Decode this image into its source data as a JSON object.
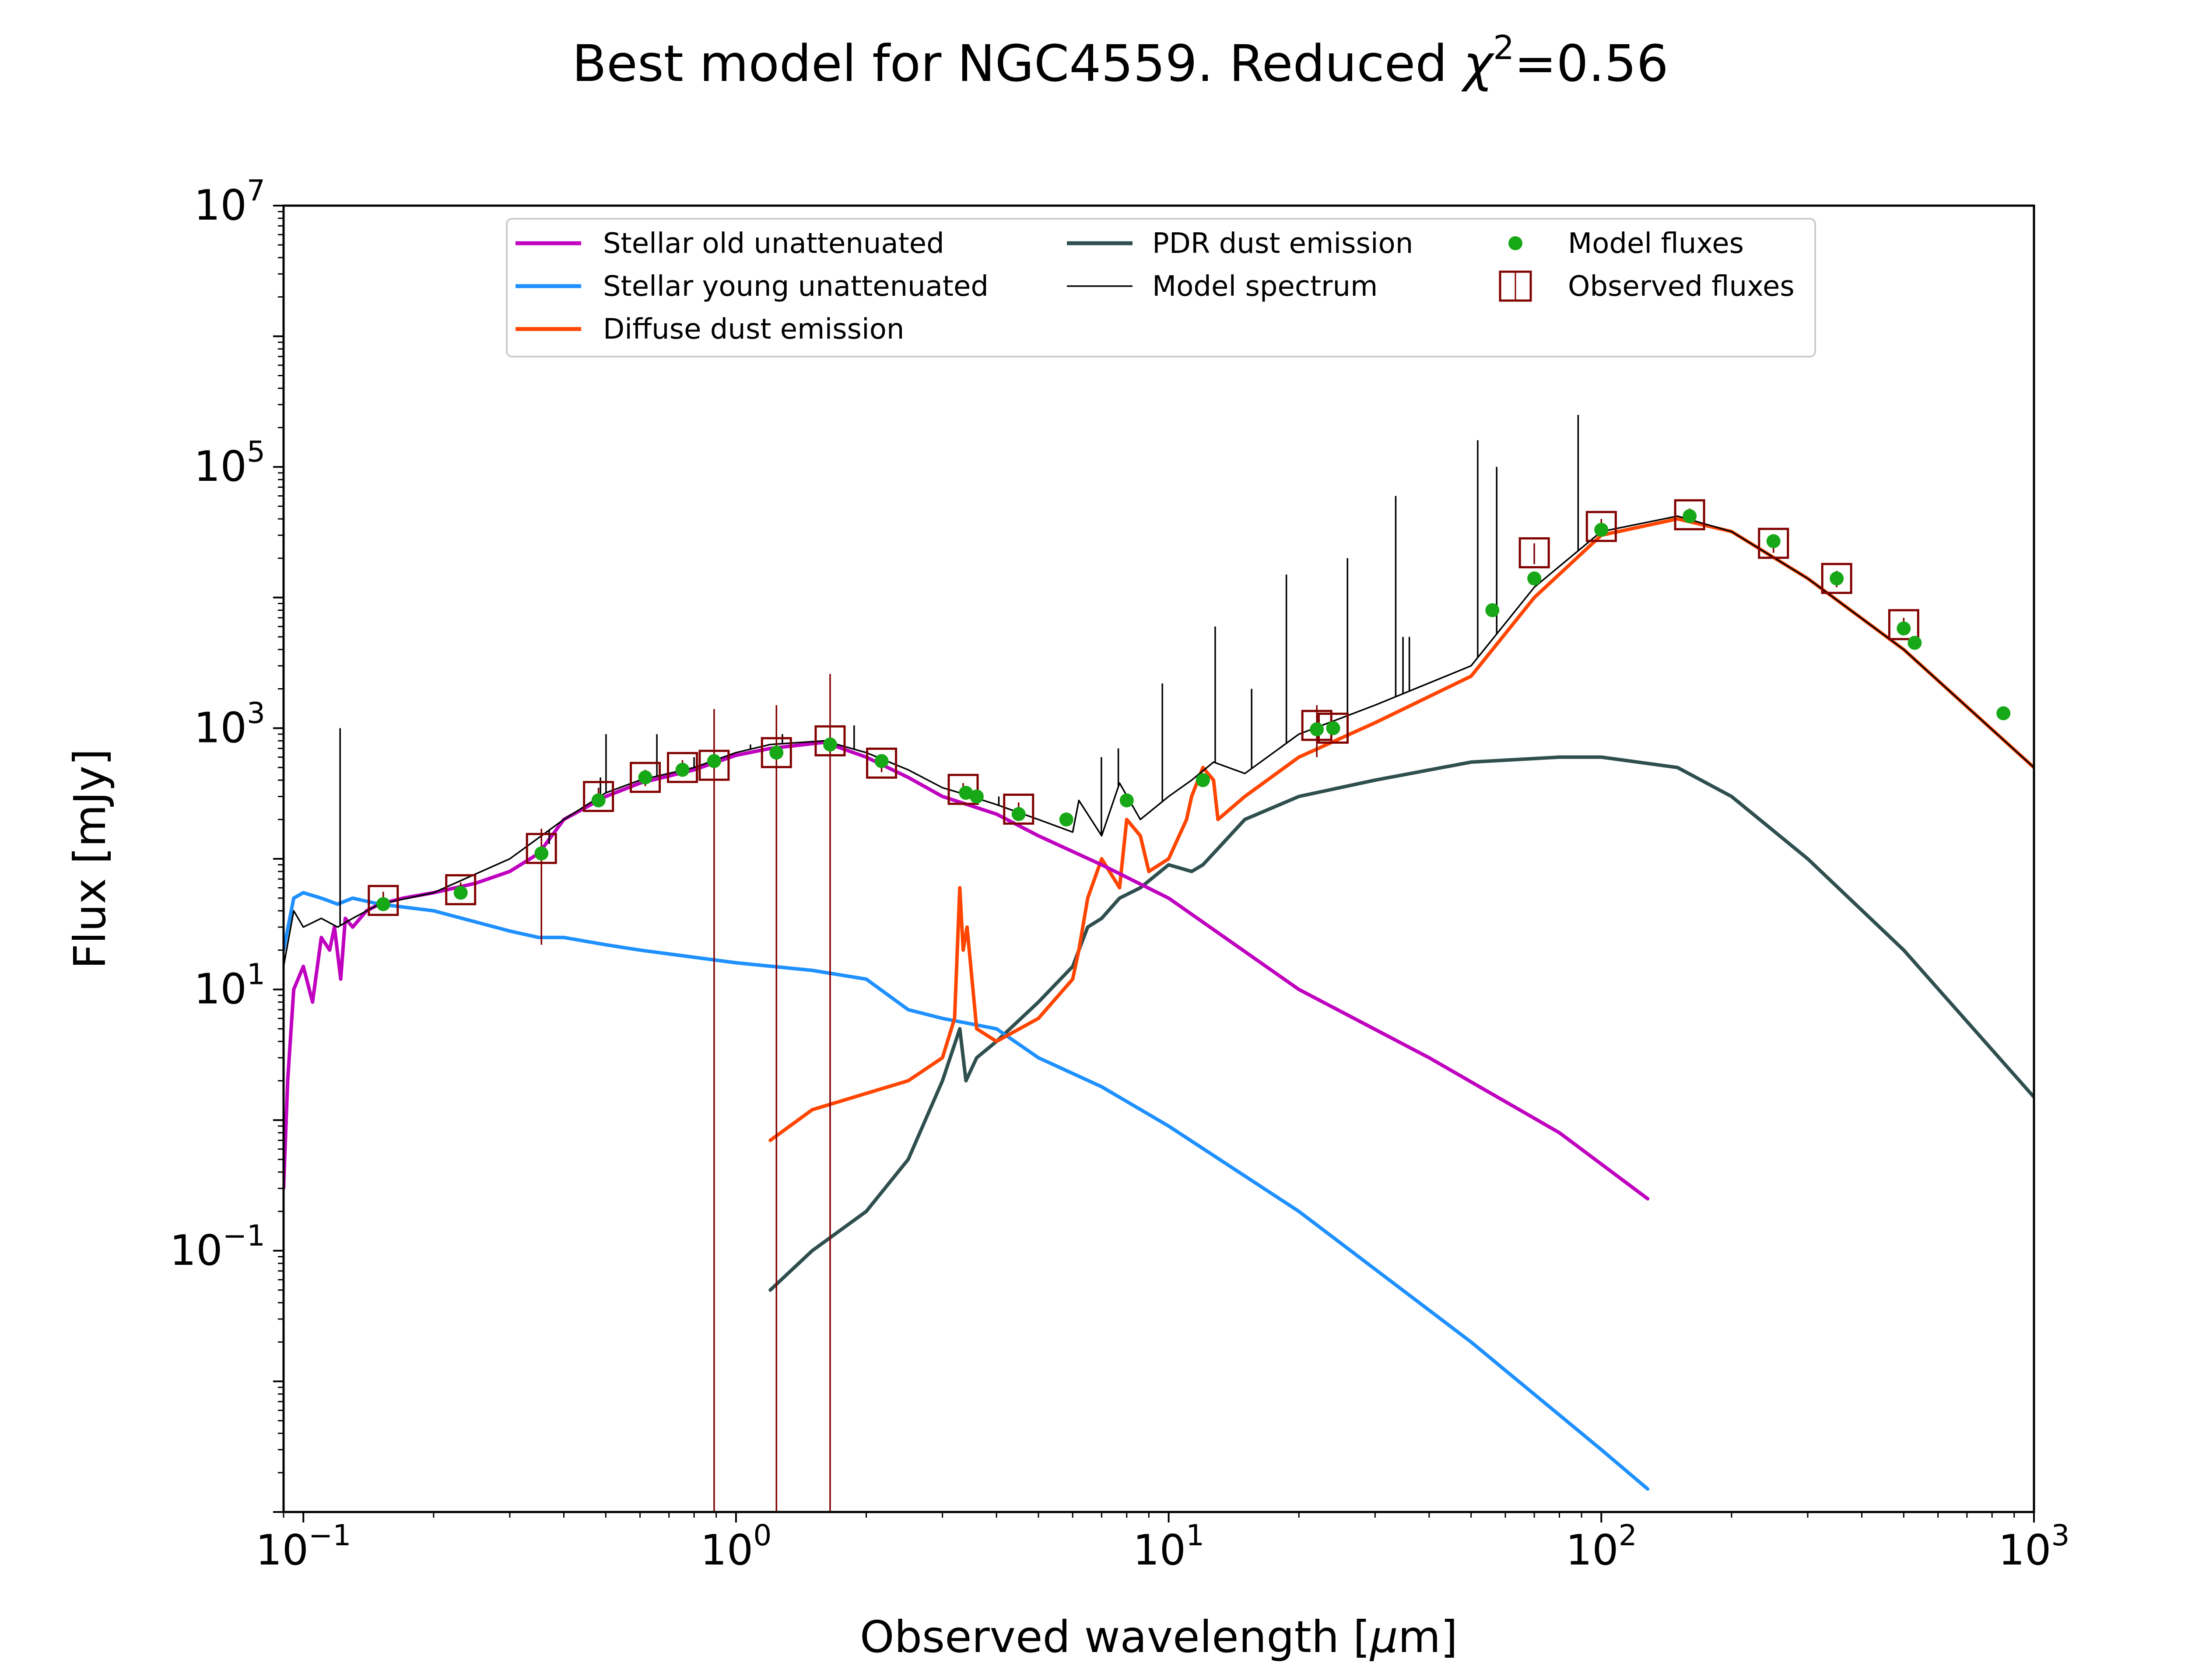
{
  "chart_data": {
    "type": "line",
    "title": "Best model for NGC4559. Reduced χ²=0.56",
    "title_parts": [
      "Best model for NGC4559. Reduced ",
      "χ",
      "2",
      "=0.56"
    ],
    "xlabel": "Observed wavelength [μm]",
    "xlabel_parts": [
      "Observed wavelength [",
      "μ",
      "m]"
    ],
    "ylabel": "Flux [mJy]",
    "xscale": "log",
    "yscale": "log",
    "xlim": [
      0.09,
      1000
    ],
    "ylim": [
      0.001,
      10000000
    ],
    "xticks": [
      {
        "value": 0.1,
        "base": "10",
        "exp": "−1"
      },
      {
        "value": 1,
        "base": "10",
        "exp": "0"
      },
      {
        "value": 10,
        "base": "10",
        "exp": "1"
      },
      {
        "value": 100,
        "base": "10",
        "exp": "2"
      },
      {
        "value": 1000,
        "base": "10",
        "exp": "3"
      }
    ],
    "yticks": [
      {
        "value": 0.1,
        "base": "10",
        "exp": "−1"
      },
      {
        "value": 10,
        "base": "10",
        "exp": "1"
      },
      {
        "value": 1000,
        "base": "10",
        "exp": "3"
      },
      {
        "value": 100000,
        "base": "10",
        "exp": "5"
      },
      {
        "value": 10000000,
        "base": "10",
        "exp": "7"
      }
    ],
    "grid": false,
    "legend_position": "top-center",
    "colors": {
      "stellar_old": "#bf00bf",
      "stellar_young": "#1e90ff",
      "diffuse_dust": "#ff4500",
      "pdr_dust": "#2f4f4f",
      "model_spectrum": "#000000",
      "model_fluxes": "#17a817",
      "observed_fluxes": "#800000"
    },
    "series": [
      {
        "key": "stellar_old",
        "name": "Stellar old unattenuated",
        "x": [
          0.09,
          0.092,
          0.095,
          0.1,
          0.105,
          0.11,
          0.115,
          0.118,
          0.122,
          0.125,
          0.13,
          0.14,
          0.15,
          0.17,
          0.2,
          0.25,
          0.3,
          0.35,
          0.4,
          0.5,
          0.6,
          0.8,
          1.0,
          1.2,
          1.6,
          2.0,
          2.5,
          3.0,
          4.0,
          5.0,
          7.0,
          10,
          20,
          40,
          80,
          128
        ],
        "y": [
          0.3,
          2,
          10,
          15,
          8,
          25,
          20,
          30,
          12,
          35,
          30,
          40,
          45,
          50,
          55,
          65,
          80,
          110,
          200,
          300,
          380,
          480,
          620,
          700,
          780,
          600,
          420,
          300,
          220,
          150,
          90,
          50,
          10,
          3,
          0.8,
          0.25
        ]
      },
      {
        "key": "stellar_young",
        "name": "Stellar young unattenuated",
        "x": [
          0.09,
          0.095,
          0.1,
          0.11,
          0.12,
          0.13,
          0.15,
          0.2,
          0.3,
          0.35,
          0.4,
          0.5,
          0.6,
          1.0,
          1.5,
          2.0,
          2.5,
          3.0,
          4.0,
          5.0,
          7.0,
          10,
          20,
          50,
          100,
          128
        ],
        "y": [
          20,
          50,
          55,
          50,
          45,
          50,
          45,
          40,
          28,
          25,
          25,
          22,
          20,
          16,
          14,
          12,
          7,
          6,
          5,
          3,
          1.8,
          0.9,
          0.2,
          0.02,
          0.003,
          0.0015
        ]
      },
      {
        "key": "diffuse_dust",
        "name": "Diffuse dust emission",
        "x": [
          1.2,
          1.5,
          2.0,
          2.5,
          3.0,
          3.2,
          3.29,
          3.35,
          3.42,
          3.6,
          4.0,
          5.0,
          6.0,
          6.2,
          6.5,
          7.0,
          7.7,
          8.0,
          8.6,
          9.0,
          10,
          11,
          11.3,
          12,
          12.7,
          13,
          15,
          20,
          30,
          50,
          70,
          100,
          150,
          200,
          300,
          500,
          1000
        ],
        "y": [
          0.7,
          1.2,
          1.6,
          2.0,
          3.0,
          6.0,
          60,
          20,
          30,
          5.0,
          4.0,
          6.0,
          12,
          20,
          50,
          100,
          60,
          200,
          150,
          80,
          100,
          200,
          300,
          500,
          400,
          200,
          300,
          600,
          1100,
          2500,
          10000,
          30000,
          40000,
          32000,
          14000,
          4000,
          500
        ]
      },
      {
        "key": "pdr_dust",
        "name": "PDR dust emission",
        "x": [
          1.2,
          1.5,
          2.0,
          2.5,
          3.0,
          3.29,
          3.4,
          3.6,
          4.0,
          5.0,
          6.0,
          6.5,
          7.0,
          7.7,
          8.6,
          10,
          11.3,
          12,
          15,
          20,
          30,
          50,
          80,
          100,
          150,
          200,
          300,
          500,
          1000
        ],
        "y": [
          0.05,
          0.1,
          0.2,
          0.5,
          2.0,
          5.0,
          2.0,
          3.0,
          4.0,
          8.0,
          15,
          30,
          35,
          50,
          60,
          90,
          80,
          90,
          200,
          300,
          400,
          550,
          600,
          600,
          500,
          300,
          100,
          20,
          1.5
        ]
      },
      {
        "key": "model_spectrum",
        "name": "Model spectrum",
        "x": [
          0.09,
          0.095,
          0.1,
          0.11,
          0.12,
          0.13,
          0.15,
          0.2,
          0.3,
          0.4,
          0.5,
          0.6,
          0.8,
          1.0,
          1.2,
          1.6,
          2.0,
          2.5,
          3.0,
          3.29,
          4.0,
          5.0,
          6.0,
          6.2,
          7.0,
          7.7,
          8.6,
          10,
          11.3,
          12.7,
          15,
          20,
          30,
          50,
          70,
          100,
          150,
          200,
          300,
          500,
          1000
        ],
        "y": [
          15,
          40,
          30,
          35,
          30,
          35,
          45,
          55,
          100,
          200,
          320,
          400,
          500,
          650,
          750,
          800,
          650,
          480,
          350,
          320,
          260,
          200,
          160,
          280,
          150,
          380,
          200,
          300,
          400,
          550,
          450,
          900,
          1500,
          3000,
          12000,
          32000,
          42000,
          32000,
          14000,
          4000,
          500
        ]
      }
    ],
    "emission_lines": [
      {
        "x": 0.1216,
        "top": 1000
      },
      {
        "x": 0.37,
        "top": 130
      },
      {
        "x": 0.486,
        "top": 420
      },
      {
        "x": 0.5007,
        "top": 900
      },
      {
        "x": 0.6563,
        "top": 900
      },
      {
        "x": 0.8,
        "top": 600
      },
      {
        "x": 1.08,
        "top": 750
      },
      {
        "x": 1.28,
        "top": 900
      },
      {
        "x": 1.875,
        "top": 1050
      },
      {
        "x": 4.05,
        "top": 300
      },
      {
        "x": 6.99,
        "top": 600
      },
      {
        "x": 7.65,
        "top": 700
      },
      {
        "x": 9.67,
        "top": 2200
      },
      {
        "x": 12.81,
        "top": 6000
      },
      {
        "x": 15.55,
        "top": 2000
      },
      {
        "x": 18.71,
        "top": 15000
      },
      {
        "x": 25.9,
        "top": 20000
      },
      {
        "x": 33.48,
        "top": 60000
      },
      {
        "x": 34.8,
        "top": 5000
      },
      {
        "x": 36.0,
        "top": 5000
      },
      {
        "x": 51.8,
        "top": 160000
      },
      {
        "x": 57.3,
        "top": 100000
      },
      {
        "x": 88.4,
        "top": 250000
      }
    ],
    "model_fluxes": {
      "name": "Model fluxes",
      "x": [
        0.153,
        0.231,
        0.355,
        0.481,
        0.617,
        0.752,
        0.89,
        1.24,
        1.65,
        2.17,
        3.4,
        3.6,
        4.5,
        5.8,
        8.0,
        12,
        22,
        24,
        56,
        70,
        100,
        160,
        250,
        350,
        500,
        530,
        850
      ],
      "y": [
        45,
        55,
        110,
        280,
        420,
        480,
        560,
        650,
        750,
        560,
        320,
        300,
        220,
        200,
        280,
        400,
        980,
        1000,
        8000,
        14000,
        33000,
        42000,
        27000,
        14000,
        5800,
        4500,
        1300
      ]
    },
    "observed_fluxes": {
      "name": "Observed fluxes",
      "points": [
        {
          "x": 0.153,
          "y": 48,
          "ylow": 40,
          "yhigh": 56
        },
        {
          "x": 0.231,
          "y": 58,
          "ylow": 50,
          "yhigh": 66
        },
        {
          "x": 0.355,
          "y": 120,
          "ylow": 22,
          "yhigh": 170
        },
        {
          "x": 0.481,
          "y": 300,
          "ylow": 250,
          "yhigh": 350
        },
        {
          "x": 0.617,
          "y": 420,
          "ylow": 360,
          "yhigh": 480
        },
        {
          "x": 0.752,
          "y": 500,
          "ylow": 430,
          "yhigh": 570
        },
        {
          "x": 0.89,
          "y": 520,
          "ylow": 0.001,
          "yhigh": 1400
        },
        {
          "x": 1.24,
          "y": 650,
          "ylow": 0.001,
          "yhigh": 1500
        },
        {
          "x": 1.65,
          "y": 800,
          "ylow": 0.001,
          "yhigh": 2600
        },
        {
          "x": 2.17,
          "y": 540,
          "ylow": 460,
          "yhigh": 620
        },
        {
          "x": 3.35,
          "y": 340,
          "ylow": 300,
          "yhigh": 380
        },
        {
          "x": 4.5,
          "y": 240,
          "ylow": 210,
          "yhigh": 270
        },
        {
          "x": 22,
          "y": 1050,
          "ylow": 600,
          "yhigh": 1500
        },
        {
          "x": 24,
          "y": 1000,
          "ylow": 900,
          "yhigh": 1100
        },
        {
          "x": 70,
          "y": 22000,
          "ylow": 18000,
          "yhigh": 26000
        },
        {
          "x": 100,
          "y": 35000,
          "ylow": 30000,
          "yhigh": 40000
        },
        {
          "x": 160,
          "y": 43000,
          "ylow": 38000,
          "yhigh": 48000
        },
        {
          "x": 250,
          "y": 26000,
          "ylow": 22000,
          "yhigh": 30000
        },
        {
          "x": 350,
          "y": 14000,
          "ylow": 12000,
          "yhigh": 16000
        },
        {
          "x": 500,
          "y": 6200,
          "ylow": 5400,
          "yhigh": 7000
        }
      ]
    }
  }
}
